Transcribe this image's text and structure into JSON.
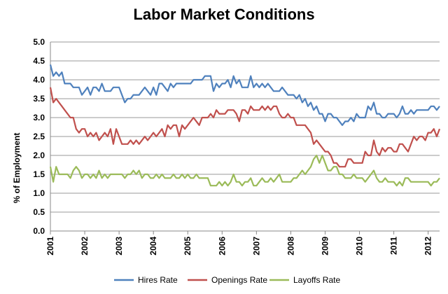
{
  "chart_data": {
    "type": "line",
    "title": "Labor Market Conditions",
    "xlabel": "",
    "ylabel": "% of Employment",
    "ylim": [
      0,
      5
    ],
    "yticks": [
      "0.0",
      "0.5",
      "1.0",
      "1.5",
      "2.0",
      "2.5",
      "3.0",
      "3.5",
      "4.0",
      "4.5",
      "5.0"
    ],
    "xticks": [
      "2001",
      "2002",
      "2003",
      "2004",
      "2005",
      "2006",
      "2007",
      "2008",
      "2009",
      "2010",
      "2011",
      "2012"
    ],
    "x_start": "2001-01",
    "x_interval": "month",
    "grid": "horizontal",
    "legend_position": "bottom",
    "series": [
      {
        "name": "Hires Rate",
        "color": "#4f81bd",
        "values": [
          4.4,
          4.1,
          4.2,
          4.1,
          4.2,
          3.9,
          3.9,
          3.9,
          3.8,
          3.8,
          3.8,
          3.6,
          3.7,
          3.8,
          3.6,
          3.8,
          3.8,
          3.7,
          3.9,
          3.7,
          3.7,
          3.7,
          3.8,
          3.8,
          3.8,
          3.6,
          3.4,
          3.5,
          3.5,
          3.6,
          3.6,
          3.6,
          3.7,
          3.8,
          3.7,
          3.6,
          3.8,
          3.6,
          3.9,
          3.9,
          3.8,
          3.7,
          3.9,
          3.8,
          3.9,
          3.9,
          3.9,
          3.9,
          3.9,
          3.9,
          4.0,
          4.0,
          4.0,
          4.0,
          4.1,
          4.1,
          4.1,
          3.7,
          3.9,
          3.8,
          3.9,
          3.9,
          4.0,
          3.8,
          4.1,
          3.9,
          4.0,
          3.8,
          3.8,
          3.8,
          4.1,
          3.8,
          3.9,
          3.8,
          3.9,
          3.8,
          3.9,
          3.8,
          3.7,
          3.7,
          3.7,
          3.8,
          3.7,
          3.6,
          3.6,
          3.6,
          3.5,
          3.6,
          3.4,
          3.5,
          3.3,
          3.4,
          3.2,
          3.3,
          3.1,
          3.1,
          2.9,
          3.1,
          3.1,
          3.0,
          3.0,
          2.9,
          2.8,
          2.9,
          2.9,
          3.0,
          2.9,
          3.1,
          3.0,
          3.0,
          3.0,
          3.3,
          3.2,
          3.4,
          3.1,
          3.1,
          3.0,
          3.0,
          3.1,
          3.1,
          3.1,
          3.0,
          3.1,
          3.3,
          3.1,
          3.1,
          3.2,
          3.1,
          3.2,
          3.2,
          3.2,
          3.2,
          3.2,
          3.3,
          3.3,
          3.2,
          3.3
        ]
      },
      {
        "name": "Openings Rate",
        "color": "#c0504d",
        "values": [
          3.8,
          3.4,
          3.5,
          3.4,
          3.3,
          3.2,
          3.1,
          3.0,
          3.0,
          2.7,
          2.6,
          2.7,
          2.7,
          2.5,
          2.6,
          2.5,
          2.6,
          2.4,
          2.5,
          2.6,
          2.5,
          2.7,
          2.3,
          2.7,
          2.5,
          2.3,
          2.3,
          2.3,
          2.4,
          2.3,
          2.4,
          2.3,
          2.4,
          2.5,
          2.4,
          2.5,
          2.6,
          2.5,
          2.6,
          2.7,
          2.5,
          2.8,
          2.7,
          2.8,
          2.8,
          2.5,
          2.8,
          2.7,
          2.8,
          2.9,
          3.0,
          2.9,
          2.8,
          3.0,
          3.0,
          3.0,
          3.1,
          3.0,
          3.2,
          3.1,
          3.1,
          3.1,
          3.2,
          3.2,
          3.2,
          3.1,
          2.9,
          3.2,
          3.2,
          3.1,
          3.3,
          3.2,
          3.2,
          3.2,
          3.3,
          3.2,
          3.3,
          3.2,
          3.3,
          3.3,
          3.1,
          3.0,
          3.0,
          3.1,
          3.0,
          3.0,
          2.8,
          2.8,
          2.8,
          2.8,
          2.7,
          2.6,
          2.3,
          2.4,
          2.3,
          2.2,
          2.1,
          2.1,
          2.0,
          1.8,
          1.8,
          1.7,
          1.7,
          1.7,
          1.9,
          1.9,
          1.8,
          1.8,
          1.8,
          1.8,
          2.1,
          2.0,
          2.0,
          2.4,
          2.1,
          2.0,
          2.2,
          2.1,
          2.2,
          2.2,
          2.1,
          2.1,
          2.3,
          2.3,
          2.2,
          2.1,
          2.3,
          2.5,
          2.4,
          2.5,
          2.5,
          2.4,
          2.6,
          2.6,
          2.7,
          2.5,
          2.7
        ]
      },
      {
        "name": "Layoffs Rate",
        "color": "#9bbb59",
        "values": [
          1.7,
          1.3,
          1.7,
          1.5,
          1.5,
          1.5,
          1.5,
          1.4,
          1.6,
          1.7,
          1.6,
          1.4,
          1.5,
          1.5,
          1.4,
          1.5,
          1.4,
          1.6,
          1.4,
          1.5,
          1.4,
          1.5,
          1.5,
          1.5,
          1.5,
          1.5,
          1.4,
          1.5,
          1.5,
          1.6,
          1.5,
          1.6,
          1.4,
          1.5,
          1.5,
          1.4,
          1.4,
          1.5,
          1.4,
          1.5,
          1.4,
          1.4,
          1.4,
          1.5,
          1.4,
          1.4,
          1.5,
          1.4,
          1.5,
          1.4,
          1.4,
          1.5,
          1.4,
          1.4,
          1.4,
          1.4,
          1.2,
          1.2,
          1.2,
          1.3,
          1.2,
          1.3,
          1.2,
          1.3,
          1.5,
          1.3,
          1.3,
          1.2,
          1.3,
          1.3,
          1.4,
          1.2,
          1.2,
          1.3,
          1.4,
          1.3,
          1.3,
          1.4,
          1.3,
          1.4,
          1.5,
          1.3,
          1.3,
          1.3,
          1.3,
          1.4,
          1.4,
          1.5,
          1.6,
          1.5,
          1.6,
          1.7,
          1.9,
          2.0,
          1.8,
          2.0,
          1.8,
          1.6,
          1.6,
          1.7,
          1.7,
          1.5,
          1.5,
          1.4,
          1.4,
          1.4,
          1.5,
          1.4,
          1.4,
          1.4,
          1.3,
          1.4,
          1.5,
          1.6,
          1.4,
          1.3,
          1.3,
          1.4,
          1.3,
          1.3,
          1.3,
          1.2,
          1.3,
          1.2,
          1.4,
          1.4,
          1.3,
          1.3,
          1.3,
          1.3,
          1.3,
          1.3,
          1.3,
          1.2,
          1.3,
          1.3,
          1.4
        ]
      }
    ]
  }
}
